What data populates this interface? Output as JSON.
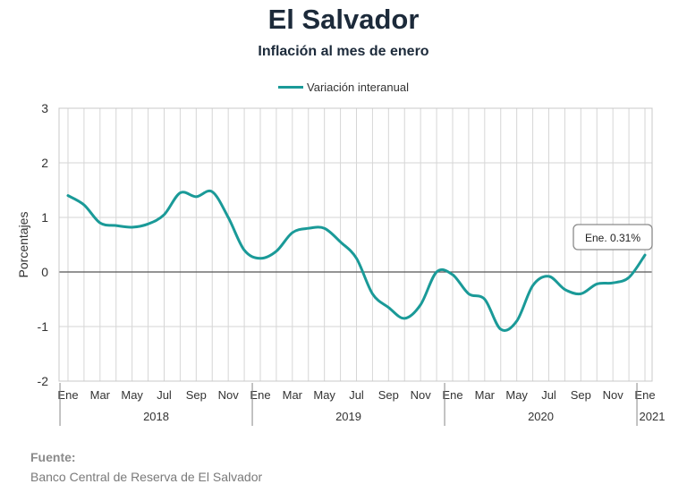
{
  "chart_data": {
    "type": "line",
    "title": "El Salvador",
    "subtitle": "Inflación al mes de enero",
    "ylabel": "Porcentajes",
    "xlabel": "",
    "ylim": [
      -2,
      3
    ],
    "yticks": [
      3,
      2,
      1,
      0,
      -1,
      -2
    ],
    "grid": true,
    "legend_position": "top-center",
    "x": [
      "2018-01",
      "2018-02",
      "2018-03",
      "2018-04",
      "2018-05",
      "2018-06",
      "2018-07",
      "2018-08",
      "2018-09",
      "2018-10",
      "2018-11",
      "2018-12",
      "2019-01",
      "2019-02",
      "2019-03",
      "2019-04",
      "2019-05",
      "2019-06",
      "2019-07",
      "2019-08",
      "2019-09",
      "2019-10",
      "2019-11",
      "2019-12",
      "2020-01",
      "2020-02",
      "2020-03",
      "2020-04",
      "2020-05",
      "2020-06",
      "2020-07",
      "2020-08",
      "2020-09",
      "2020-10",
      "2020-11",
      "2020-12",
      "2021-01"
    ],
    "month_tick_labels": [
      "Ene",
      "",
      "Mar",
      "",
      "May",
      "",
      "Jul",
      "",
      "Sep",
      "",
      "Nov",
      "",
      "Ene",
      "",
      "Mar",
      "",
      "May",
      "",
      "Jul",
      "",
      "Sep",
      "",
      "Nov",
      "",
      "Ene",
      "",
      "Mar",
      "",
      "May",
      "",
      "Jul",
      "",
      "Sep",
      "",
      "Nov",
      "",
      "Ene"
    ],
    "year_groups": [
      {
        "label": "2018",
        "start": 0,
        "end": 11
      },
      {
        "label": "2019",
        "start": 12,
        "end": 23
      },
      {
        "label": "2020",
        "start": 24,
        "end": 35
      },
      {
        "label": "2021",
        "start": 36,
        "end": 36
      }
    ],
    "series": [
      {
        "name": "Variación interanual",
        "color": "#1a9a98",
        "values": [
          1.4,
          1.23,
          0.9,
          0.85,
          0.82,
          0.88,
          1.05,
          1.45,
          1.38,
          1.47,
          1.0,
          0.4,
          0.25,
          0.38,
          0.72,
          0.8,
          0.8,
          0.55,
          0.25,
          -0.4,
          -0.65,
          -0.85,
          -0.6,
          0.0,
          -0.05,
          -0.4,
          -0.5,
          -1.05,
          -0.9,
          -0.25,
          -0.08,
          -0.32,
          -0.4,
          -0.22,
          -0.2,
          -0.1,
          0.31
        ]
      }
    ],
    "annotations": [
      {
        "text": "Ene. 0.31%",
        "index": 36
      }
    ]
  },
  "source": {
    "label": "Fuente:",
    "text": "Banco Central de Reserva de El Salvador"
  }
}
